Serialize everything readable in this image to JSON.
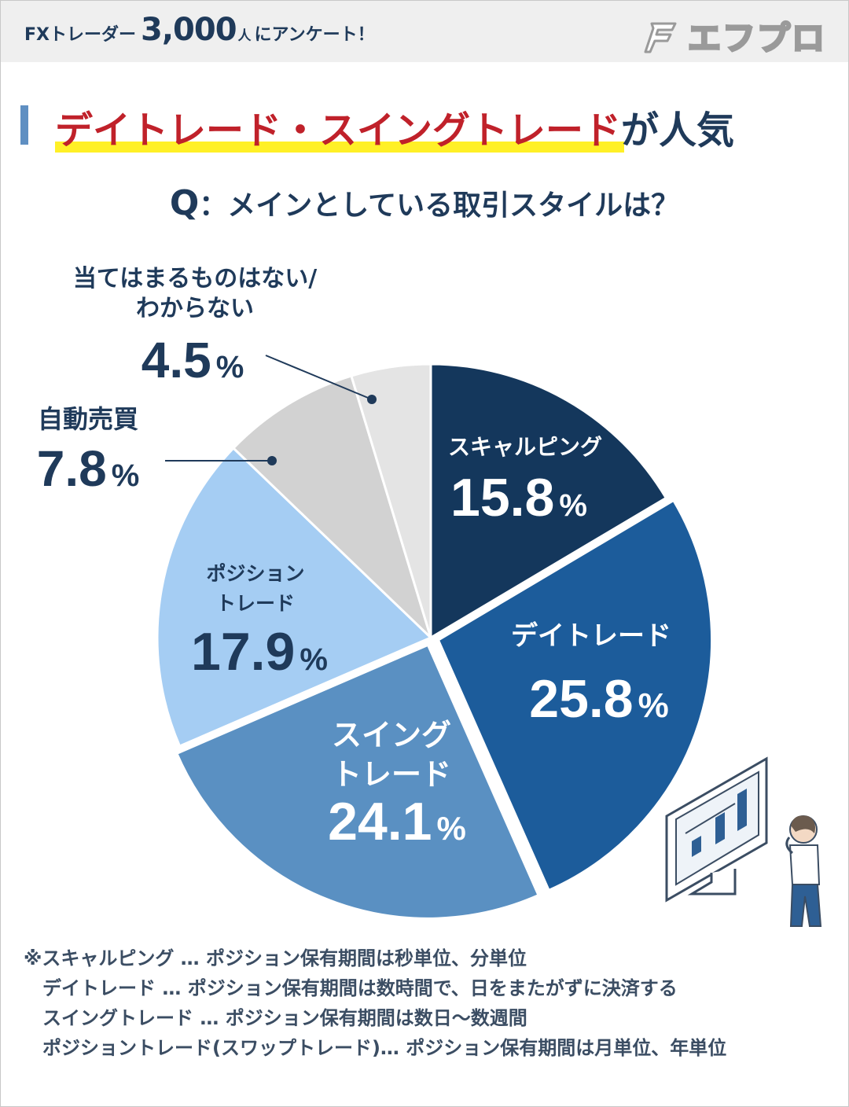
{
  "header": {
    "survey_prefix": "FXトレーダー",
    "survey_number": "3,000",
    "survey_unit": "人",
    "survey_suffix": "にアンケート！",
    "brand": "エフプロ"
  },
  "headline": {
    "highlight": "デイトレード・スイングトレード",
    "rest": "が人気"
  },
  "question": {
    "q_mark": "Q",
    "text": "：メインとしている取引スタイルは？"
  },
  "chart_data": {
    "type": "pie",
    "start_angle_deg": 0,
    "direction": "clockwise",
    "slices": [
      {
        "label_lines": [
          "スキャルピング"
        ],
        "value": 15.8,
        "value_text": "15.8",
        "color": "#14375c",
        "text_color": "#ffffff"
      },
      {
        "label_lines": [
          "デイトレード"
        ],
        "value": 25.8,
        "value_text": "25.8",
        "color": "#1c5c9b",
        "text_color": "#ffffff"
      },
      {
        "label_lines": [
          "スイング",
          "トレード"
        ],
        "value": 24.1,
        "value_text": "24.1",
        "color": "#5a90c2",
        "text_color": "#ffffff"
      },
      {
        "label_lines": [
          "ポジション",
          "トレード"
        ],
        "value": 17.9,
        "value_text": "17.9",
        "color": "#a5cdf3",
        "text_color": "#1f3a5a"
      },
      {
        "label_lines": [
          "自動売買"
        ],
        "value": 7.8,
        "value_text": "7.8",
        "color": "#d2d2d2",
        "text_color": "#1f3a5a"
      },
      {
        "label_lines": [
          "当てはまるものはない/",
          "わからない"
        ],
        "value": 4.5,
        "value_text": "4.5",
        "color": "#e4e4e4",
        "text_color": "#1f3a5a"
      }
    ],
    "percent_symbol": "%",
    "exploded_slices": [
      1,
      2
    ]
  },
  "notes": [
    "※スキャルピング … ポジション保有期間は秒単位、分単位",
    "デイトレード … ポジション保有期間は数時間で、日をまたがずに決済する",
    "スイングトレード … ポジション保有期間は数日～数週間",
    "ポジショントレード(スワップトレード)… ポジション保有期間は月単位、年単位"
  ]
}
